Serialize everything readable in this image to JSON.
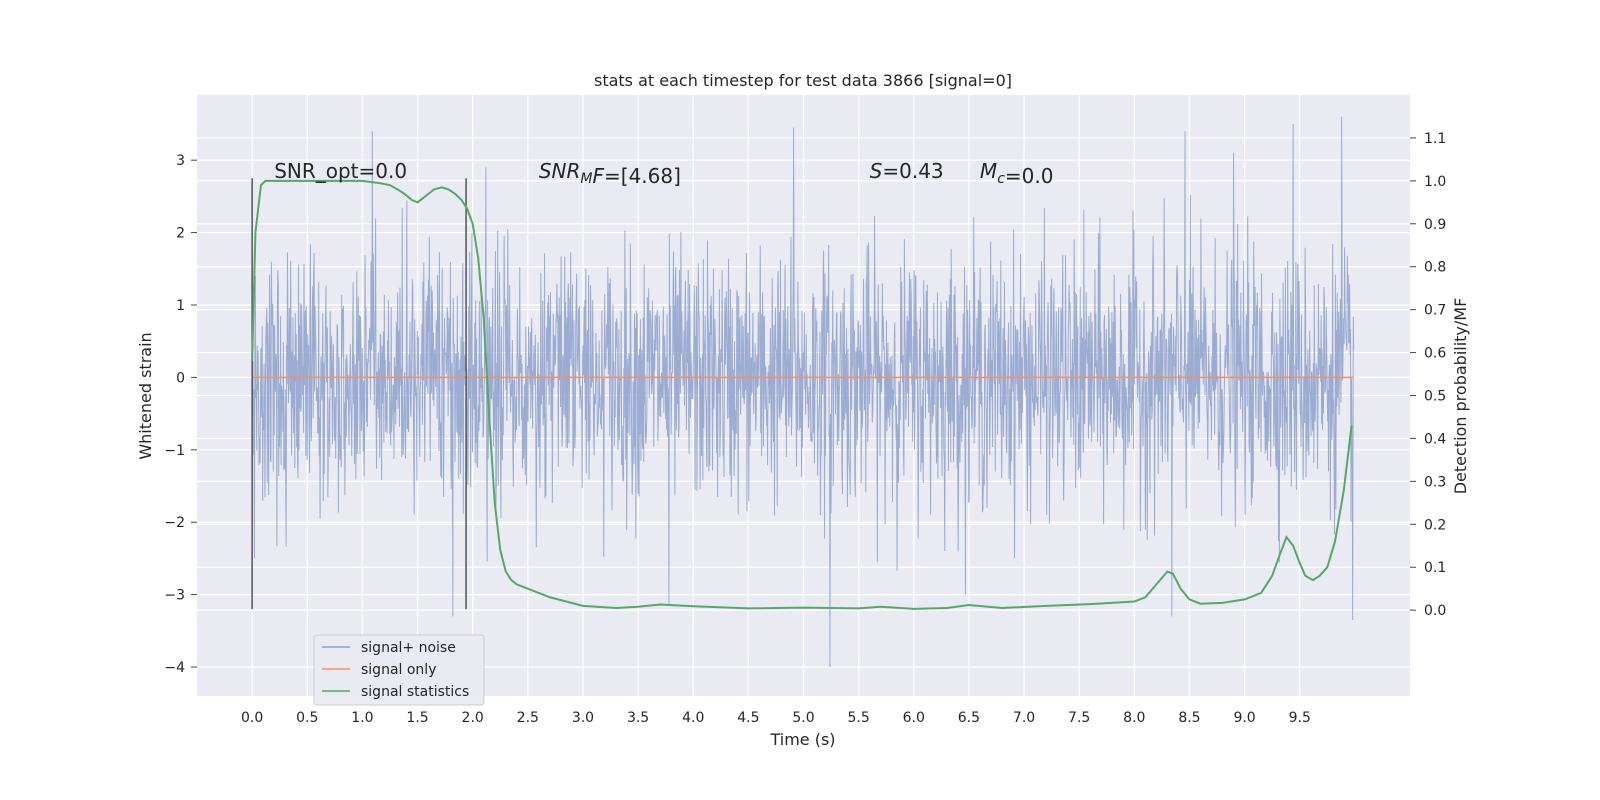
{
  "chart_data": {
    "type": "line",
    "title": "stats at each timestep for test data 3866 [signal=0]",
    "xlabel": "Time (s)",
    "ylabel": "Whitened strain",
    "y2label": "Detection probability/MF",
    "xlim": [
      -0.5,
      10.5
    ],
    "ylim": [
      -4.4,
      3.9
    ],
    "y2lim": [
      -0.2,
      1.2
    ],
    "x_ticks": [
      "0.0",
      "0.5",
      "1.0",
      "1.5",
      "2.0",
      "2.5",
      "3.0",
      "3.5",
      "4.0",
      "4.5",
      "5.0",
      "5.5",
      "6.0",
      "6.5",
      "7.0",
      "7.5",
      "8.0",
      "8.5",
      "9.0",
      "9.5"
    ],
    "y_ticks": [
      "3",
      "2",
      "1",
      "0",
      "−1",
      "−2",
      "−3",
      "−4"
    ],
    "y2_ticks": [
      "1.1",
      "1.0",
      "0.9",
      "0.8",
      "0.7",
      "0.6",
      "0.5",
      "0.4",
      "0.3",
      "0.2",
      "0.1",
      "0.0"
    ],
    "grid": true,
    "legend_position": "lower-left",
    "annotations": [
      {
        "id": "snr-opt",
        "label": "SNR_opt=0.0",
        "x": 0.2,
        "y": 2.85
      },
      {
        "id": "snr-mf",
        "label": "=[4.68]",
        "math_base": "SNR",
        "math_sub": "M",
        "math_tail": "F",
        "x": 2.6,
        "y": 2.85
      },
      {
        "id": "s-stat",
        "label": "=0.43",
        "math_base": "S",
        "x": 5.6,
        "y": 2.85
      },
      {
        "id": "mc",
        "label": "=0.0",
        "math_base": "M",
        "math_sub": "c",
        "x": 6.6,
        "y": 2.85
      }
    ],
    "vlines": [
      0.0,
      1.94
    ],
    "vline_ymin": -3.2,
    "vline_ymax": 2.75,
    "series": [
      {
        "name": "signal+ noise",
        "color": "#8da0cb",
        "noise_std": 0.85,
        "x_start": 0.0,
        "x_end": 9.99,
        "spikes": [
          {
            "x": 1.09,
            "y": 3.4
          },
          {
            "x": 4.91,
            "y": 3.45
          },
          {
            "x": 8.46,
            "y": 3.4
          },
          {
            "x": 9.44,
            "y": 3.5
          },
          {
            "x": 9.88,
            "y": 3.6
          },
          {
            "x": 1.82,
            "y": -3.3
          },
          {
            "x": 5.24,
            "y": -4.0
          },
          {
            "x": 8.34,
            "y": -3.3
          },
          {
            "x": 9.98,
            "y": -3.35
          },
          {
            "x": 3.78,
            "y": -3.15
          },
          {
            "x": 2.12,
            "y": 2.9
          },
          {
            "x": 8.9,
            "y": 3.1
          }
        ]
      },
      {
        "name": "signal only",
        "color": "#fc8d62",
        "x": [
          0.0,
          9.99
        ],
        "y": [
          0.0,
          0.0
        ]
      },
      {
        "name": "signal statistics",
        "color": "#55a868",
        "axis": "right",
        "x": [
          0.0,
          0.03,
          0.08,
          0.12,
          0.18,
          0.25,
          0.4,
          0.6,
          0.8,
          1.0,
          1.15,
          1.25,
          1.32,
          1.38,
          1.45,
          1.5,
          1.55,
          1.6,
          1.65,
          1.72,
          1.78,
          1.84,
          1.9,
          1.95,
          2.0,
          2.05,
          2.1,
          2.15,
          2.2,
          2.25,
          2.3,
          2.35,
          2.4,
          2.5,
          2.7,
          3.0,
          3.3,
          3.5,
          3.7,
          4.0,
          4.5,
          5.0,
          5.5,
          5.7,
          6.0,
          6.3,
          6.5,
          6.8,
          7.2,
          7.6,
          8.0,
          8.1,
          8.2,
          8.3,
          8.35,
          8.42,
          8.5,
          8.6,
          8.8,
          9.0,
          9.15,
          9.25,
          9.32,
          9.38,
          9.44,
          9.5,
          9.55,
          9.62,
          9.68,
          9.75,
          9.82,
          9.9,
          9.97
        ],
        "y": [
          0.58,
          0.88,
          0.99,
          1.0,
          1.0,
          1.0,
          1.0,
          1.0,
          1.0,
          1.0,
          0.995,
          0.99,
          0.98,
          0.97,
          0.955,
          0.95,
          0.96,
          0.97,
          0.98,
          0.985,
          0.98,
          0.97,
          0.955,
          0.935,
          0.9,
          0.82,
          0.68,
          0.45,
          0.25,
          0.14,
          0.09,
          0.07,
          0.06,
          0.05,
          0.03,
          0.01,
          0.005,
          0.008,
          0.013,
          0.009,
          0.004,
          0.006,
          0.004,
          0.008,
          0.003,
          0.005,
          0.012,
          0.005,
          0.01,
          0.014,
          0.02,
          0.03,
          0.06,
          0.09,
          0.085,
          0.05,
          0.025,
          0.015,
          0.017,
          0.025,
          0.04,
          0.08,
          0.13,
          0.17,
          0.15,
          0.11,
          0.08,
          0.07,
          0.08,
          0.1,
          0.16,
          0.28,
          0.43
        ]
      }
    ]
  }
}
